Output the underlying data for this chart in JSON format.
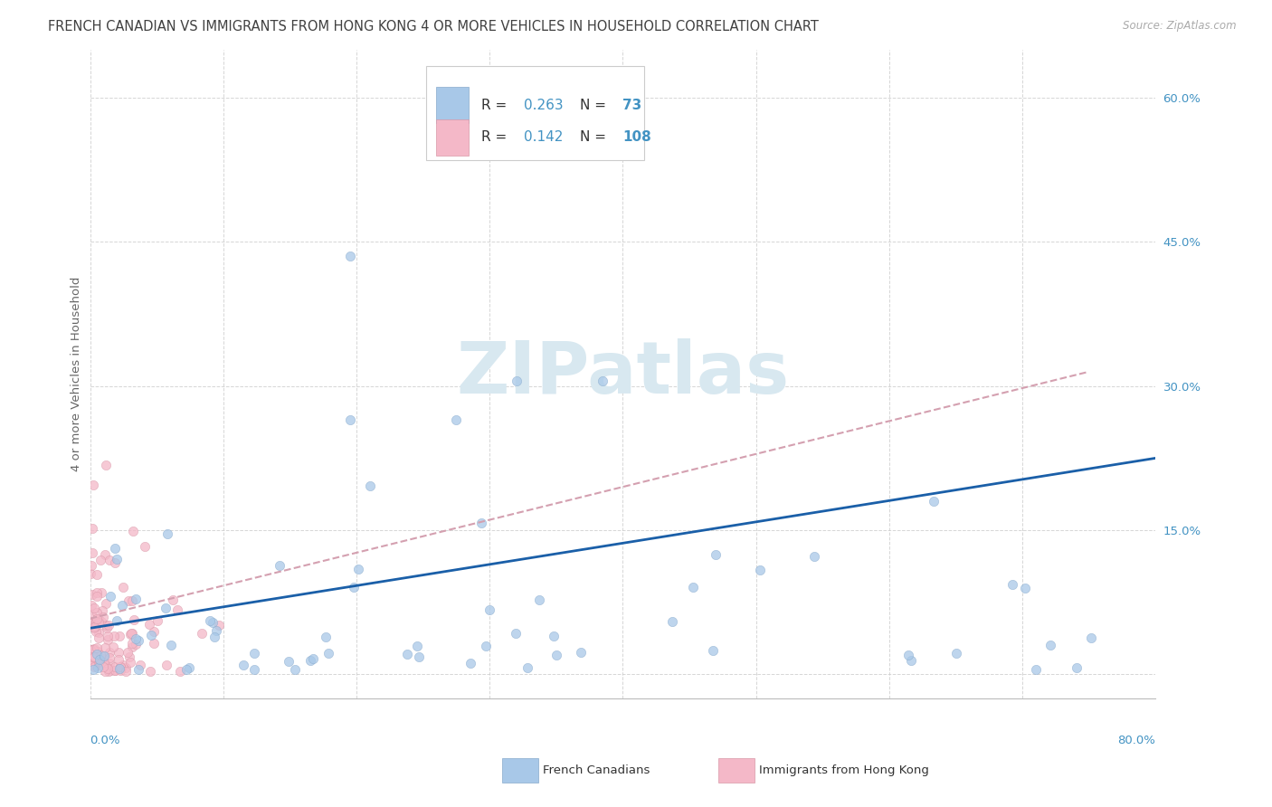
{
  "title": "FRENCH CANADIAN VS IMMIGRANTS FROM HONG KONG 4 OR MORE VEHICLES IN HOUSEHOLD CORRELATION CHART",
  "source": "Source: ZipAtlas.com",
  "ylabel": "4 or more Vehicles in Household",
  "legend_label1": "French Canadians",
  "legend_label2": "Immigrants from Hong Kong",
  "color_blue": "#a8c8e8",
  "color_blue_edge": "#88aacc",
  "color_pink": "#f4b8c8",
  "color_pink_edge": "#d898a8",
  "color_blue_line": "#1a5fa8",
  "color_pink_line": "#d4a0b0",
  "color_title": "#404040",
  "color_axis_labels": "#4393c3",
  "color_source": "#aaaaaa",
  "watermark": "ZIPatlas",
  "watermark_color": "#d8e8f0",
  "xlim": [
    0.0,
    0.8
  ],
  "ylim": [
    -0.025,
    0.65
  ],
  "yticks": [
    0.0,
    0.15,
    0.3,
    0.45,
    0.6
  ],
  "ytick_labels": [
    "",
    "15.0%",
    "30.0%",
    "45.0%",
    "60.0%"
  ],
  "grid_color": "#cccccc",
  "bg_color": "#ffffff",
  "marker_size": 55,
  "title_fontsize": 10.5,
  "axis_label_fontsize": 9.5,
  "tick_fontsize": 9.5,
  "legend_fontsize": 11
}
